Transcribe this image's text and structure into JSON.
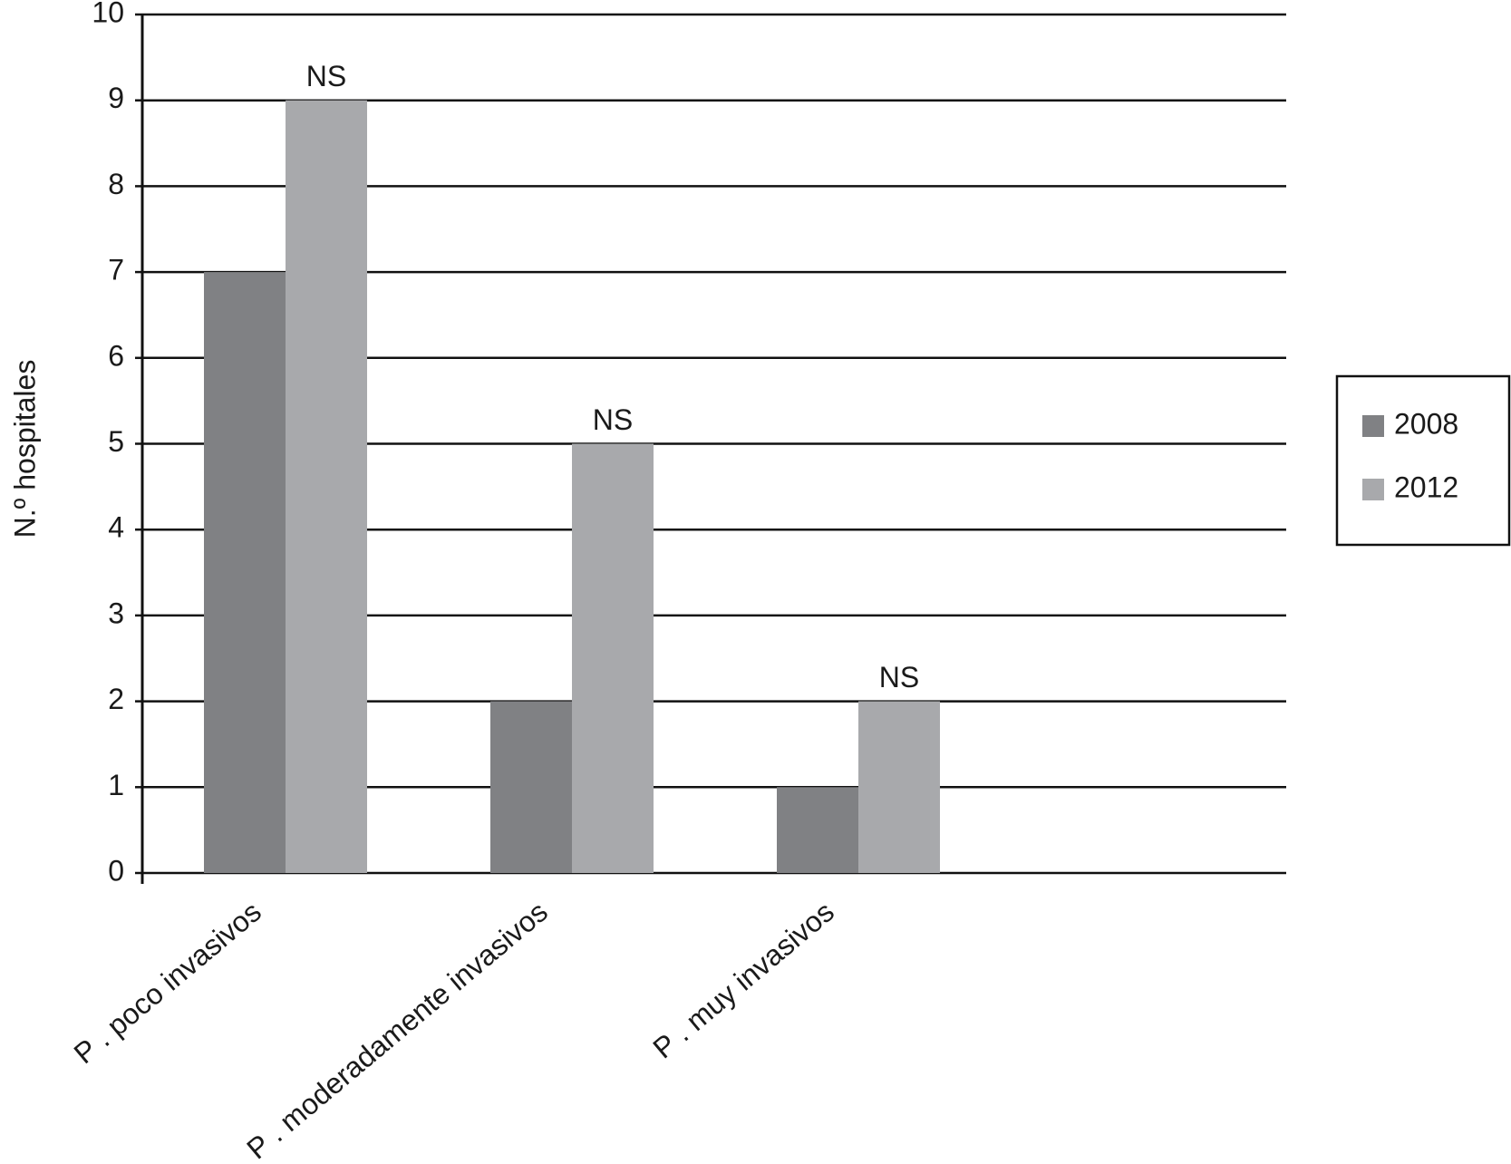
{
  "chart_data": {
    "type": "bar",
    "y_label": "N.º hospitales",
    "categories": [
      "P . poco invasivos",
      "P . moderadamente invasivos",
      "P . muy invasivos"
    ],
    "series": [
      {
        "name": "2008",
        "color": "#808184",
        "values": [
          7,
          2,
          1
        ]
      },
      {
        "name": "2012",
        "color": "#a8a9ac",
        "values": [
          9,
          5,
          2
        ]
      }
    ],
    "annotations": [
      "NS",
      "NS",
      "NS"
    ],
    "ylim": [
      0,
      10
    ],
    "yticks": [
      0,
      1,
      2,
      3,
      4,
      5,
      6,
      7,
      8,
      9,
      10
    ],
    "grid": true,
    "legend": "right"
  }
}
